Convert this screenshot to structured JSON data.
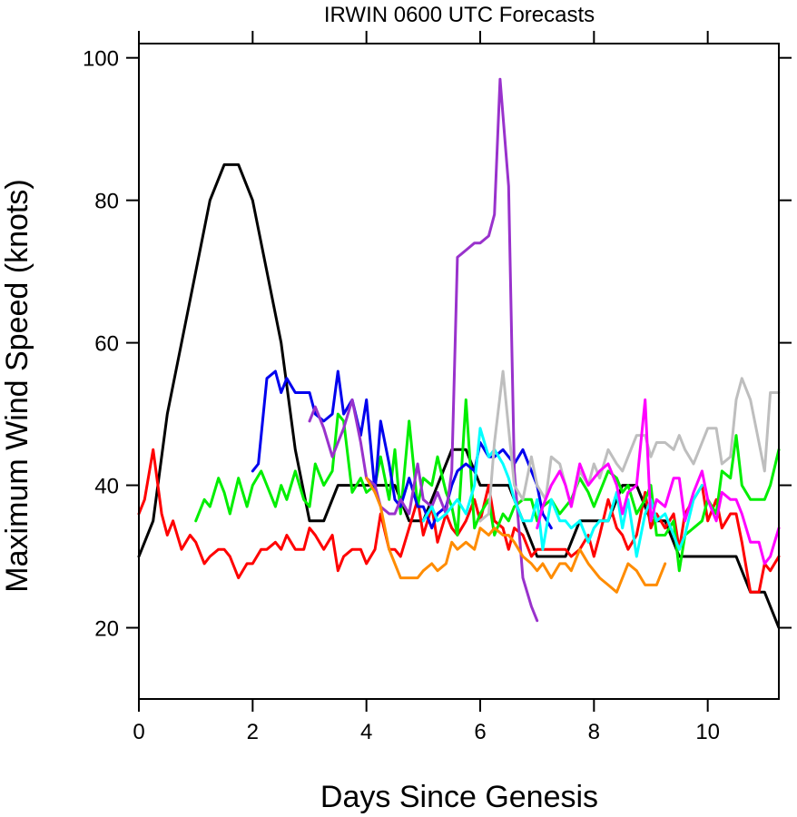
{
  "chart_data": {
    "type": "line",
    "title": "IRWIN 0600 UTC Forecasts",
    "xlabel": "Days Since Genesis",
    "ylabel": "Maximum Wind Speed (knots)",
    "xlim": [
      0,
      11.25
    ],
    "ylim": [
      10,
      102
    ],
    "xticks": [
      0,
      2,
      4,
      6,
      8,
      10
    ],
    "yticks": [
      20,
      40,
      60,
      80,
      100
    ],
    "grid": false,
    "series": [
      {
        "color": "#000000",
        "x": [
          0,
          0.25,
          0.5,
          1.0,
          1.25,
          1.5,
          1.75,
          2.0,
          2.25,
          2.5,
          2.75,
          3.0,
          3.25,
          3.5,
          3.75,
          4.0,
          4.25,
          4.5,
          4.75,
          5.0,
          5.25,
          5.5,
          5.75,
          6.0,
          6.25,
          6.5,
          6.75,
          7.0,
          7.25,
          7.5,
          7.75,
          8.0,
          8.25,
          8.5,
          8.75,
          9.0,
          9.25,
          9.5,
          9.75,
          10.0,
          10.25,
          10.5,
          10.75,
          11.0,
          11.25
        ],
        "y": [
          30,
          35,
          50,
          70,
          80,
          85,
          85,
          80,
          70,
          60,
          45,
          35,
          35,
          40,
          40,
          40,
          40,
          40,
          35,
          35,
          40,
          45,
          45,
          40,
          40,
          40,
          35,
          30,
          30,
          30,
          35,
          35,
          35,
          40,
          40,
          35,
          35,
          30,
          30,
          30,
          30,
          30,
          25,
          25,
          20
        ]
      },
      {
        "color": "#ff0000",
        "x": [
          0,
          0.1,
          0.25,
          0.4,
          0.5,
          0.6,
          0.75,
          0.9,
          1.0,
          1.15,
          1.25,
          1.4,
          1.5,
          1.6,
          1.75,
          1.9,
          2.0,
          2.15,
          2.25,
          2.4,
          2.5,
          2.6,
          2.75,
          2.9,
          3.0,
          3.1,
          3.25,
          3.4,
          3.5,
          3.6,
          3.75,
          3.9,
          4.0,
          4.15,
          4.25,
          4.4,
          4.5,
          4.6,
          4.75,
          4.9,
          5.0,
          5.15,
          5.25,
          5.4,
          5.5,
          5.6,
          5.75,
          5.9,
          6.0,
          6.15,
          6.25,
          6.4,
          6.5,
          6.6,
          6.75,
          6.9,
          7.0,
          7.1,
          7.25,
          7.4,
          7.5,
          7.6,
          7.75,
          7.9,
          8.0,
          8.1,
          8.25,
          8.4,
          8.5,
          8.6,
          8.75,
          8.9,
          9.0,
          9.1,
          9.25,
          9.4,
          9.5,
          9.6,
          9.75,
          9.9,
          10.0,
          10.15,
          10.25,
          10.4,
          10.5,
          10.6,
          10.75,
          10.9,
          11.0,
          11.1,
          11.25
        ],
        "y": [
          36,
          38,
          45,
          36,
          33,
          35,
          31,
          33,
          32,
          29,
          30,
          31,
          31,
          30,
          27,
          29,
          29,
          31,
          31,
          32,
          31,
          33,
          31,
          31,
          34,
          33,
          31,
          33,
          28,
          30,
          31,
          31,
          29,
          31,
          36,
          31,
          31,
          30,
          34,
          38,
          33,
          37,
          32,
          36,
          34,
          33,
          35,
          38,
          35,
          40,
          35,
          34,
          31,
          34,
          33,
          30,
          31,
          31,
          31,
          31,
          31,
          30,
          31,
          33,
          30,
          33,
          38,
          34,
          33,
          31,
          33,
          39,
          34,
          36,
          34,
          36,
          31,
          36,
          38,
          40,
          35,
          38,
          34,
          36,
          36,
          32,
          25,
          25,
          29,
          28,
          30
        ]
      },
      {
        "color": "#00ee00",
        "x": [
          1.0,
          1.15,
          1.25,
          1.4,
          1.5,
          1.6,
          1.75,
          1.9,
          2.0,
          2.15,
          2.25,
          2.4,
          2.5,
          2.6,
          2.75,
          2.9,
          3.0,
          3.1,
          3.25,
          3.4,
          3.5,
          3.6,
          3.75,
          3.9,
          4.0,
          4.15,
          4.25,
          4.4,
          4.5,
          4.6,
          4.75,
          4.9,
          5.0,
          5.15,
          5.25,
          5.4,
          5.5,
          5.6,
          5.75,
          5.9,
          6.0,
          6.15,
          6.25,
          6.4,
          6.5,
          6.6,
          6.75,
          6.9,
          7.0,
          7.1,
          7.25,
          7.4,
          7.5,
          7.6,
          7.75,
          7.9,
          8.0,
          8.1,
          8.25,
          8.4,
          8.5,
          8.6,
          8.75,
          8.9,
          9.0,
          9.1,
          9.25,
          9.4,
          9.5,
          9.6,
          9.75,
          9.9,
          10.0,
          10.15,
          10.25,
          10.4,
          10.5,
          10.6,
          10.75,
          10.9,
          11.0,
          11.1,
          11.25
        ],
        "y": [
          35,
          38,
          37,
          41,
          39,
          36,
          41,
          37,
          40,
          42,
          40,
          37,
          40,
          38,
          42,
          38,
          37,
          43,
          40,
          42,
          50,
          49,
          39,
          41,
          39,
          40,
          44,
          38,
          45,
          36,
          49,
          37,
          41,
          40,
          44,
          39,
          37,
          33,
          52,
          34,
          36,
          38,
          33,
          36,
          35,
          37,
          38,
          38,
          35,
          37,
          38,
          36,
          37,
          38,
          41,
          39,
          37,
          39,
          42,
          41,
          39,
          40,
          36,
          38,
          40,
          33,
          33,
          35,
          28,
          33,
          34,
          35,
          38,
          36,
          42,
          41,
          47,
          40,
          38,
          38,
          38,
          40,
          45
        ]
      },
      {
        "color": "#0000ee",
        "x": [
          2.0,
          2.1,
          2.25,
          2.4,
          2.5,
          2.6,
          2.75,
          2.9,
          3.0,
          3.1,
          3.25,
          3.4,
          3.5,
          3.6,
          3.75,
          3.9,
          4.0,
          4.15,
          4.25,
          4.4,
          4.5,
          4.6,
          4.75,
          4.9,
          5.0,
          5.15,
          5.25,
          5.4,
          5.5,
          5.6,
          5.75,
          5.9,
          6.0,
          6.15,
          6.25,
          6.4,
          6.5,
          6.6,
          6.75,
          6.9,
          7.0,
          7.1,
          7.25
        ],
        "y": [
          42,
          43,
          55,
          56,
          53,
          55,
          53,
          53,
          53,
          50,
          49,
          50,
          56,
          50,
          52,
          47,
          52,
          39,
          49,
          43,
          38,
          37,
          41,
          37,
          37,
          34,
          36,
          37,
          40,
          42,
          43,
          42,
          46,
          44,
          44,
          45,
          44,
          43,
          45,
          42,
          40,
          36,
          34
        ]
      },
      {
        "color": "#9932cc",
        "x": [
          3.0,
          3.1,
          3.25,
          3.4,
          3.5,
          3.6,
          3.75,
          3.9,
          4.0,
          4.15,
          4.25,
          4.4,
          4.5,
          4.6,
          4.75,
          4.9,
          5.0,
          5.15,
          5.25,
          5.4,
          5.5,
          5.6,
          5.75,
          5.9,
          6.0,
          6.15,
          6.25,
          6.35,
          6.5,
          6.6,
          6.75,
          6.9,
          7.0
        ],
        "y": [
          49,
          51,
          48,
          44,
          46,
          48,
          52,
          46,
          41,
          40,
          37,
          36,
          36,
          38,
          36,
          43,
          38,
          37,
          39,
          36,
          42,
          72,
          73,
          74,
          74,
          75,
          78,
          97,
          82,
          42,
          27,
          23,
          21
        ]
      },
      {
        "color": "#ff8c00",
        "x": [
          4.0,
          4.15,
          4.25,
          4.4,
          4.5,
          4.6,
          4.75,
          4.9,
          5.0,
          5.15,
          5.25,
          5.4,
          5.5,
          5.6,
          5.75,
          5.9,
          6.0,
          6.15,
          6.25,
          6.4,
          6.5,
          6.6,
          6.75,
          6.9,
          7.0,
          7.1,
          7.25,
          7.4,
          7.5,
          7.6,
          7.75,
          7.9,
          8.0,
          8.1,
          8.25,
          8.4,
          8.5,
          8.6,
          8.75,
          8.9,
          9.0,
          9.1,
          9.25
        ],
        "y": [
          41,
          39,
          37,
          31,
          29,
          27,
          27,
          27,
          28,
          29,
          28,
          29,
          32,
          31,
          32,
          31,
          34,
          33,
          34,
          33,
          33,
          32,
          30,
          29,
          28,
          29,
          27,
          29,
          29,
          28,
          31,
          29,
          28,
          27,
          26,
          25,
          27,
          29,
          28,
          26,
          26,
          26,
          29
        ]
      },
      {
        "color": "#00ffff",
        "x": [
          5.0,
          5.15,
          5.25,
          5.4,
          5.5,
          5.6,
          5.75,
          5.9,
          6.0,
          6.15,
          6.25,
          6.4,
          6.5,
          6.6,
          6.75,
          6.9,
          7.0,
          7.1,
          7.25,
          7.4,
          7.5,
          7.6,
          7.75,
          7.9,
          8.0,
          8.1,
          8.25,
          8.4,
          8.5,
          8.6,
          8.75,
          8.9,
          9.0,
          9.1,
          9.25,
          9.4,
          9.5,
          9.6,
          9.75,
          9.9
        ],
        "y": [
          35,
          37,
          35,
          36,
          37,
          38,
          36,
          40,
          48,
          44,
          45,
          43,
          41,
          38,
          35,
          35,
          38,
          31,
          38,
          35,
          35,
          34,
          35,
          32,
          34,
          35,
          35,
          39,
          34,
          38,
          30,
          36,
          38,
          35,
          36,
          33,
          31,
          33,
          38,
          40
        ]
      },
      {
        "color": "#bebebe",
        "x": [
          6.0,
          6.15,
          6.25,
          6.4,
          6.5,
          6.6,
          6.75,
          6.9,
          7.0,
          7.15,
          7.25,
          7.4,
          7.5,
          7.6,
          7.75,
          7.9,
          8.0,
          8.1,
          8.25,
          8.4,
          8.5,
          8.6,
          8.75,
          8.9,
          9.0,
          9.1,
          9.25,
          9.4,
          9.5,
          9.6,
          9.75,
          9.9,
          10.0,
          10.15,
          10.25,
          10.4,
          10.5,
          10.6,
          10.75,
          10.9,
          11.0,
          11.1,
          11.25
        ],
        "y": [
          35,
          36,
          46,
          56,
          48,
          40,
          38,
          44,
          40,
          38,
          44,
          43,
          40,
          37,
          42,
          40,
          43,
          41,
          45,
          43,
          42,
          44,
          47,
          47,
          44,
          46,
          46,
          45,
          47,
          45,
          43,
          46,
          48,
          48,
          43,
          44,
          52,
          55,
          52,
          46,
          42,
          53,
          53
        ]
      },
      {
        "color": "#ff00ff",
        "x": [
          7.0,
          7.1,
          7.25,
          7.4,
          7.5,
          7.6,
          7.75,
          7.9,
          8.0,
          8.1,
          8.25,
          8.4,
          8.5,
          8.6,
          8.75,
          8.9,
          9.0,
          9.1,
          9.25,
          9.4,
          9.5,
          9.6,
          9.75,
          9.9,
          10.0,
          10.15,
          10.25,
          10.4,
          10.5,
          10.6,
          10.75,
          10.9,
          11.0,
          11.1,
          11.25
        ],
        "y": [
          34,
          37,
          40,
          42,
          40,
          37,
          43,
          40,
          41,
          42,
          43,
          40,
          36,
          39,
          40,
          52,
          35,
          38,
          37,
          41,
          41,
          35,
          39,
          42,
          38,
          35,
          39,
          38,
          38,
          36,
          32,
          32,
          29,
          30,
          34
        ]
      }
    ]
  }
}
